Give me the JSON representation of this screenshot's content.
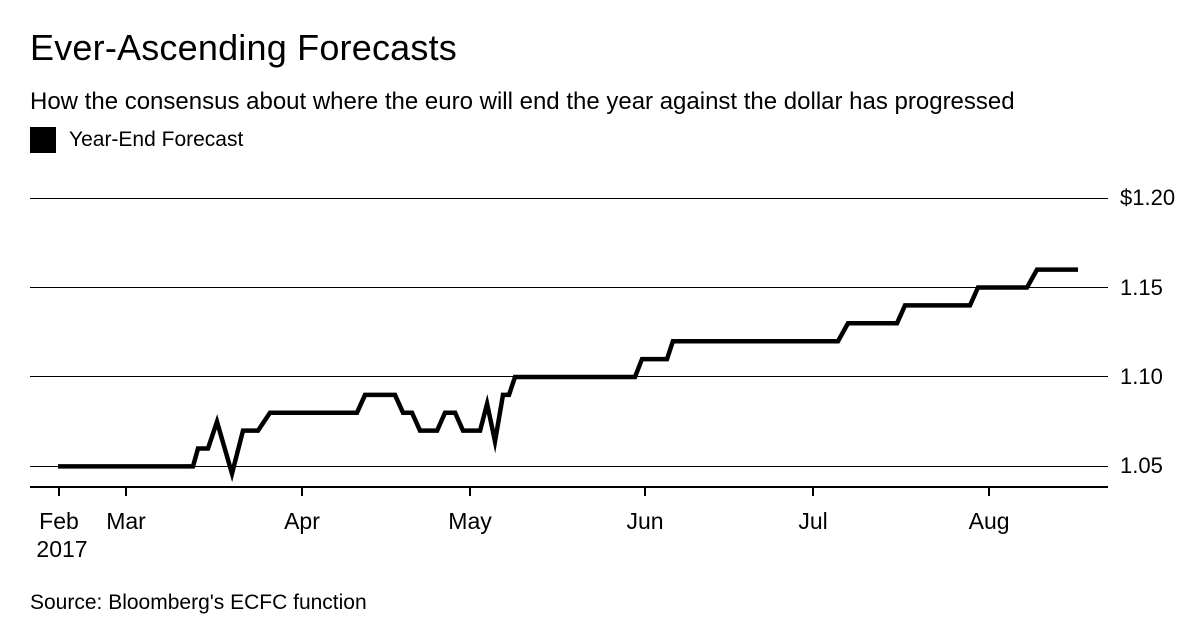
{
  "header": {
    "title": "Ever-Ascending Forecasts",
    "subtitle": "How the consensus about where the euro will end the year against the dollar has progressed"
  },
  "legend": {
    "label": "Year-End Forecast",
    "swatch_color": "#000000"
  },
  "footer": {
    "source": "Source: Bloomberg's ECFC function"
  },
  "colors": {
    "background": "#ffffff",
    "text": "#000000",
    "line": "#000000",
    "grid": "#000000"
  },
  "chart_data": {
    "type": "line",
    "title": "Ever-Ascending Forecasts",
    "subtitle": "How the consensus about where the euro will end the year against the dollar has progressed",
    "grid": "horizontal",
    "legend_position": "top-left",
    "source": "Source: Bloomberg's ECFC function",
    "point_format": "[x_fraction_of_plot_width, eur_usd_forecast_value]",
    "series": [
      {
        "name": "Year-End Forecast",
        "style": "step",
        "color": "#000000",
        "stroke_width": 4.5,
        "points": [
          [
            0.026,
            1.05
          ],
          [
            0.1512,
            1.05
          ],
          [
            0.1558,
            1.06
          ],
          [
            0.1651,
            1.06
          ],
          [
            0.1735,
            1.075
          ],
          [
            0.1874,
            1.046
          ],
          [
            0.1976,
            1.07
          ],
          [
            0.2115,
            1.07
          ],
          [
            0.2226,
            1.08
          ],
          [
            0.3033,
            1.08
          ],
          [
            0.3108,
            1.09
          ],
          [
            0.3386,
            1.09
          ],
          [
            0.346,
            1.08
          ],
          [
            0.3544,
            1.08
          ],
          [
            0.3618,
            1.07
          ],
          [
            0.3776,
            1.07
          ],
          [
            0.385,
            1.08
          ],
          [
            0.3943,
            1.08
          ],
          [
            0.4017,
            1.07
          ],
          [
            0.4175,
            1.07
          ],
          [
            0.424,
            1.085
          ],
          [
            0.4314,
            1.064
          ],
          [
            0.4388,
            1.09
          ],
          [
            0.4443,
            1.09
          ],
          [
            0.4499,
            1.1
          ],
          [
            0.5612,
            1.1
          ],
          [
            0.5677,
            1.11
          ],
          [
            0.5909,
            1.11
          ],
          [
            0.5964,
            1.12
          ],
          [
            0.7495,
            1.12
          ],
          [
            0.7588,
            1.13
          ],
          [
            0.8043,
            1.13
          ],
          [
            0.8117,
            1.14
          ],
          [
            0.872,
            1.14
          ],
          [
            0.8794,
            1.15
          ],
          [
            0.9249,
            1.15
          ],
          [
            0.9341,
            1.16
          ],
          [
            0.9722,
            1.16
          ]
        ]
      }
    ],
    "x_axis": {
      "range_note": "mid-Feb 2017 to mid-Aug 2017",
      "ticks": [
        {
          "label": "Feb",
          "f": 0.0269,
          "sublabel": "2017"
        },
        {
          "label": "Mar",
          "f": 0.0891
        },
        {
          "label": "Apr",
          "f": 0.2523
        },
        {
          "label": "May",
          "f": 0.4082
        },
        {
          "label": "Jun",
          "f": 0.5705
        },
        {
          "label": "Jul",
          "f": 0.7264
        },
        {
          "label": "Aug",
          "f": 0.8897
        }
      ]
    },
    "y_axis": {
      "side": "right",
      "ylim": [
        1.0385,
        1.2045
      ],
      "ticks": [
        {
          "value": 1.2,
          "label": "$1.20"
        },
        {
          "value": 1.15,
          "label": "1.15"
        },
        {
          "value": 1.1,
          "label": "1.10"
        },
        {
          "value": 1.05,
          "label": "1.05"
        }
      ]
    }
  }
}
